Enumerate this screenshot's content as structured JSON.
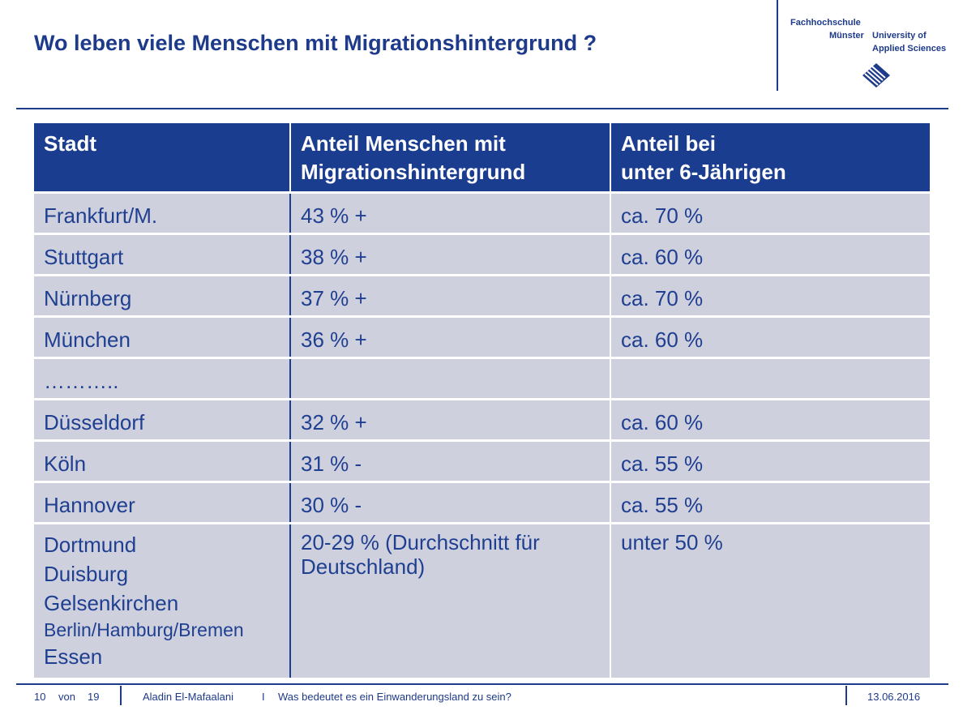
{
  "slide": {
    "title": "Wo leben viele Menschen mit Migrationshintergrund ?"
  },
  "logo": {
    "line1": "Fachhochschule",
    "line2": "Münster",
    "line3": "University of",
    "line4": "Applied Sciences"
  },
  "table": {
    "headers": [
      {
        "line1": "Stadt",
        "line2": ""
      },
      {
        "line1": "Anteil Menschen mit",
        "line2": "Migrationshintergrund"
      },
      {
        "line1": "Anteil bei",
        "line2": "unter 6-Jährigen"
      }
    ],
    "rows": [
      {
        "city": "Frankfurt/M.",
        "share": "43 % +",
        "under6": "ca. 70 %"
      },
      {
        "city": "Stuttgart",
        "share": "38 % +",
        "under6": "ca. 60 %"
      },
      {
        "city": "Nürnberg",
        "share": "37 % +",
        "under6": "ca. 70 %"
      },
      {
        "city": "München",
        "share": "36 % +",
        "under6": "ca. 60 %"
      },
      {
        "city": "………..",
        "share": "",
        "under6": ""
      },
      {
        "city": "Düsseldorf",
        "share": "32 % +",
        "under6": "ca. 60 %"
      },
      {
        "city": "Köln",
        "share": "31 % -",
        "under6": "ca. 55 %"
      },
      {
        "city": "Hannover",
        "share": "30 % -",
        "under6": "ca. 55 %"
      }
    ],
    "last_row": {
      "cities": [
        "Dortmund",
        "Duisburg",
        "Gelsenkirchen",
        "Berlin/Hamburg/Bremen",
        "Essen"
      ],
      "share_line1": "20-29 % (Durchschnitt für",
      "share_line2": "Deutschland)",
      "under6": "unter 50 %"
    }
  },
  "footer": {
    "page": "10",
    "of_label": "von",
    "total": "19",
    "author": "Aladin El-Mafaalani",
    "separator": "I",
    "subtitle": "Was bedeutet es ein Einwanderungsland zu sein?",
    "date": "13.06.2016"
  },
  "colors": {
    "brand_blue": "#1b3d8f",
    "row_bg": "#cfd0de"
  }
}
